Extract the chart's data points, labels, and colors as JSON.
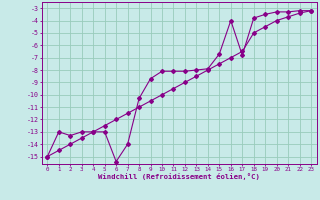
{
  "xlabel": "Windchill (Refroidissement éolien,°C)",
  "background_color": "#c8eae8",
  "grid_color": "#99ccbb",
  "line_color": "#880088",
  "xlim": [
    -0.5,
    23.5
  ],
  "ylim": [
    -15.6,
    -2.5
  ],
  "yticks": [
    -15,
    -14,
    -13,
    -12,
    -11,
    -10,
    -9,
    -8,
    -7,
    -6,
    -5,
    -4,
    -3
  ],
  "xticks": [
    0,
    1,
    2,
    3,
    4,
    5,
    6,
    7,
    8,
    9,
    10,
    11,
    12,
    13,
    14,
    15,
    16,
    17,
    18,
    19,
    20,
    21,
    22,
    23
  ],
  "series1_x": [
    0,
    1,
    2,
    3,
    4,
    5,
    6,
    7,
    8,
    9,
    10,
    11,
    12,
    13,
    14,
    15,
    16,
    17,
    18,
    19,
    20,
    21,
    22,
    23
  ],
  "series1_y": [
    -15.0,
    -13.0,
    -13.3,
    -13.0,
    -13.0,
    -13.0,
    -15.4,
    -14.0,
    -10.3,
    -8.7,
    -8.1,
    -8.1,
    -8.1,
    -8.0,
    -7.9,
    -6.7,
    -4.0,
    -6.8,
    -3.8,
    -3.5,
    -3.3,
    -3.3,
    -3.2,
    -3.2
  ],
  "series2_x": [
    0,
    1,
    2,
    3,
    4,
    5,
    6,
    7,
    8,
    9,
    10,
    11,
    12,
    13,
    14,
    15,
    16,
    17,
    18,
    19,
    20,
    21,
    22,
    23
  ],
  "series2_y": [
    -15.0,
    -14.5,
    -14.0,
    -13.5,
    -13.0,
    -12.5,
    -12.0,
    -11.5,
    -11.0,
    -10.5,
    -10.0,
    -9.5,
    -9.0,
    -8.5,
    -8.0,
    -7.5,
    -7.0,
    -6.5,
    -5.0,
    -4.5,
    -4.0,
    -3.7,
    -3.4,
    -3.2
  ]
}
